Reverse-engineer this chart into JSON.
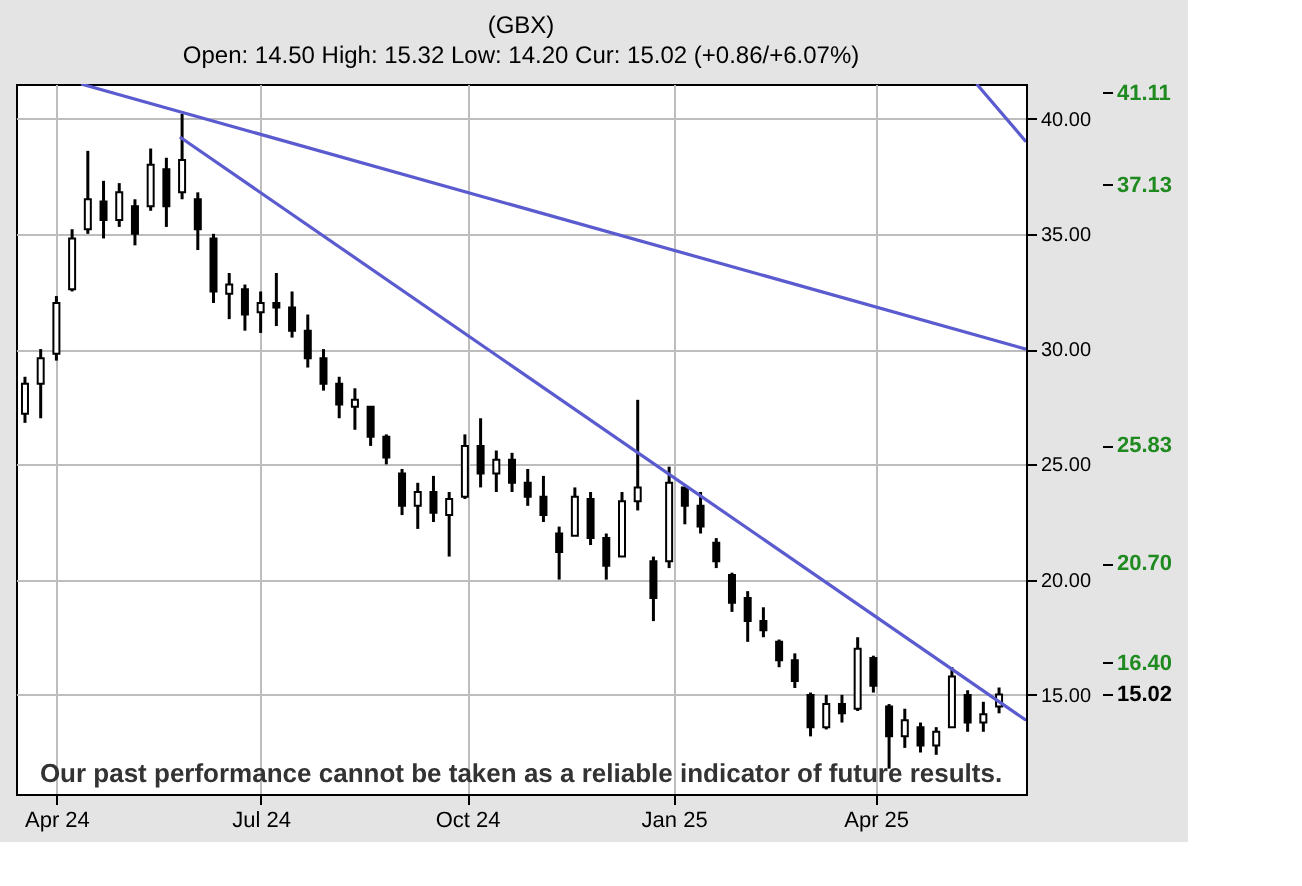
{
  "chart_data": {
    "type": "candlestick",
    "title": "(GBX)",
    "subtitle": "Open: 14.50 High: 15.32 Low: 14.20 Cur: 15.02 (+0.86/+6.07%)",
    "color": "#000000",
    "x": [
      "2024-03-18",
      "2024-03-25",
      "2024-04-01",
      "2024-04-08",
      "2024-04-15",
      "2024-04-22",
      "2024-04-29",
      "2024-05-06",
      "2024-05-13",
      "2024-05-20",
      "2024-05-27",
      "2024-06-03",
      "2024-06-10",
      "2024-06-17",
      "2024-06-24",
      "2024-07-01",
      "2024-07-08",
      "2024-07-15",
      "2024-07-22",
      "2024-07-29",
      "2024-08-05",
      "2024-08-12",
      "2024-08-19",
      "2024-08-26",
      "2024-09-02",
      "2024-09-09",
      "2024-09-16",
      "2024-09-23",
      "2024-09-30",
      "2024-10-07",
      "2024-10-14",
      "2024-10-21",
      "2024-10-28",
      "2024-11-04",
      "2024-11-11",
      "2024-11-18",
      "2024-11-25",
      "2024-12-02",
      "2024-12-09",
      "2024-12-16",
      "2024-12-23",
      "2024-12-30",
      "2025-01-06",
      "2025-01-13",
      "2025-01-20",
      "2025-01-27",
      "2025-02-03",
      "2025-02-10",
      "2025-02-17",
      "2025-02-24",
      "2025-03-03",
      "2025-03-10",
      "2025-03-17",
      "2025-03-24",
      "2025-03-31",
      "2025-04-07",
      "2025-04-14",
      "2025-04-21",
      "2025-04-28",
      "2025-05-05",
      "2025-05-12",
      "2025-05-19",
      "2025-05-26"
    ],
    "ohlc": [
      [
        27.2,
        28.8,
        26.8,
        28.5
      ],
      [
        28.5,
        30.0,
        27.0,
        29.6
      ],
      [
        29.8,
        32.3,
        29.5,
        32.0
      ],
      [
        32.6,
        35.2,
        32.5,
        34.8
      ],
      [
        35.2,
        38.6,
        35.0,
        36.5
      ],
      [
        36.4,
        37.3,
        34.8,
        35.6
      ],
      [
        35.6,
        37.2,
        35.3,
        36.8
      ],
      [
        36.2,
        36.5,
        34.5,
        35.0
      ],
      [
        36.2,
        38.7,
        36.0,
        38.0
      ],
      [
        37.8,
        38.3,
        35.3,
        36.2
      ],
      [
        36.8,
        40.2,
        36.5,
        38.2
      ],
      [
        36.5,
        36.8,
        34.3,
        35.2
      ],
      [
        34.8,
        35.0,
        32.0,
        32.5
      ],
      [
        32.4,
        33.3,
        31.3,
        32.8
      ],
      [
        32.6,
        32.8,
        30.8,
        31.5
      ],
      [
        31.6,
        32.5,
        30.7,
        32.0
      ],
      [
        32.0,
        33.3,
        31.0,
        31.8
      ],
      [
        31.8,
        32.5,
        30.5,
        30.8
      ],
      [
        30.8,
        31.5,
        29.2,
        29.6
      ],
      [
        29.6,
        30.0,
        28.2,
        28.5
      ],
      [
        28.5,
        28.8,
        27.0,
        27.6
      ],
      [
        27.5,
        28.3,
        26.5,
        27.8
      ],
      [
        27.5,
        27.5,
        25.8,
        26.2
      ],
      [
        26.2,
        26.3,
        25.0,
        25.3
      ],
      [
        24.6,
        24.8,
        22.8,
        23.2
      ],
      [
        23.2,
        24.2,
        22.2,
        23.8
      ],
      [
        23.8,
        24.5,
        22.5,
        22.9
      ],
      [
        22.8,
        23.8,
        21.0,
        23.5
      ],
      [
        23.6,
        26.3,
        23.5,
        25.8
      ],
      [
        25.8,
        27.0,
        24.0,
        24.6
      ],
      [
        24.6,
        25.6,
        23.8,
        25.2
      ],
      [
        25.2,
        25.5,
        23.8,
        24.2
      ],
      [
        24.2,
        24.8,
        23.2,
        23.6
      ],
      [
        23.6,
        24.5,
        22.5,
        22.8
      ],
      [
        22.0,
        22.3,
        20.0,
        21.2
      ],
      [
        21.9,
        24.0,
        21.9,
        23.6
      ],
      [
        23.5,
        23.8,
        21.5,
        21.8
      ],
      [
        21.8,
        22.0,
        20.0,
        20.6
      ],
      [
        21.0,
        23.8,
        21.0,
        23.4
      ],
      [
        23.4,
        27.8,
        23.0,
        24.0
      ],
      [
        20.8,
        21.0,
        18.2,
        19.2
      ],
      [
        20.8,
        24.9,
        20.5,
        24.2
      ],
      [
        24.0,
        24.0,
        22.4,
        23.2
      ],
      [
        23.2,
        23.8,
        22.0,
        22.3
      ],
      [
        21.6,
        21.8,
        20.5,
        20.8
      ],
      [
        20.2,
        20.3,
        18.6,
        19.0
      ],
      [
        19.2,
        19.5,
        17.3,
        18.2
      ],
      [
        18.2,
        18.8,
        17.5,
        17.8
      ],
      [
        17.3,
        17.4,
        16.2,
        16.5
      ],
      [
        16.5,
        16.8,
        15.3,
        15.6
      ],
      [
        15.0,
        15.1,
        13.2,
        13.6
      ],
      [
        13.6,
        15.0,
        13.5,
        14.6
      ],
      [
        14.6,
        15.0,
        13.8,
        14.2
      ],
      [
        14.4,
        17.5,
        14.3,
        17.0
      ],
      [
        16.6,
        16.7,
        15.1,
        15.4
      ],
      [
        14.5,
        14.6,
        11.8,
        13.2
      ],
      [
        13.2,
        14.4,
        12.7,
        13.9
      ],
      [
        13.6,
        13.8,
        12.5,
        12.8
      ],
      [
        12.8,
        13.6,
        12.4,
        13.4
      ],
      [
        13.6,
        16.2,
        13.6,
        15.8
      ],
      [
        15.0,
        15.2,
        13.4,
        13.8
      ],
      [
        13.8,
        14.7,
        13.4,
        14.16
      ],
      [
        14.5,
        15.32,
        14.2,
        15.02
      ]
    ],
    "series": [
      {
        "type": "line",
        "color": "#5b5bd0",
        "x": [
          "2024-04-12",
          "2025-06-07"
        ],
        "values": [
          41.5,
          30.0
        ]
      },
      {
        "type": "line",
        "color": "#5b5bd0",
        "x": [
          "2024-05-26",
          "2025-06-07"
        ],
        "values": [
          39.2,
          13.9
        ]
      },
      {
        "type": "line",
        "color": "#5b5bd0",
        "x": [
          "2025-05-16",
          "2025-06-07"
        ],
        "values": [
          41.5,
          39.0
        ]
      }
    ],
    "xlim": [
      "2024-03-14",
      "2025-06-07"
    ],
    "xticks": [
      {
        "value": "2024-04-01",
        "label": "Apr 24"
      },
      {
        "value": "2024-07-01",
        "label": "Jul 24"
      },
      {
        "value": "2024-10-01",
        "label": "Oct 24"
      },
      {
        "value": "2025-01-01",
        "label": "Jan 25"
      },
      {
        "value": "2025-04-01",
        "label": "Apr 25"
      }
    ],
    "ylim": [
      10.7,
      41.5
    ],
    "yticks": [
      {
        "value": 15,
        "label": "15.00"
      },
      {
        "value": 20,
        "label": "20.00"
      },
      {
        "value": 25,
        "label": "25.00"
      },
      {
        "value": 30,
        "label": "30.00"
      },
      {
        "value": 35,
        "label": "35.00"
      },
      {
        "value": 40,
        "label": "40.00"
      }
    ],
    "y2lim": [
      10.7,
      41.5
    ],
    "y2ticks": [
      {
        "value": 41.11,
        "label": "41.11"
      },
      {
        "value": 37.13,
        "label": "37.13"
      },
      {
        "value": 25.83,
        "label": "25.83"
      },
      {
        "value": 20.7,
        "label": "20.70"
      },
      {
        "value": 16.4,
        "label": "16.40"
      },
      {
        "value": 15.02,
        "label": "15.02"
      }
    ],
    "grid": true,
    "annotations": [
      "Our past performance cannot be taken as a reliable indicator of future results."
    ]
  }
}
